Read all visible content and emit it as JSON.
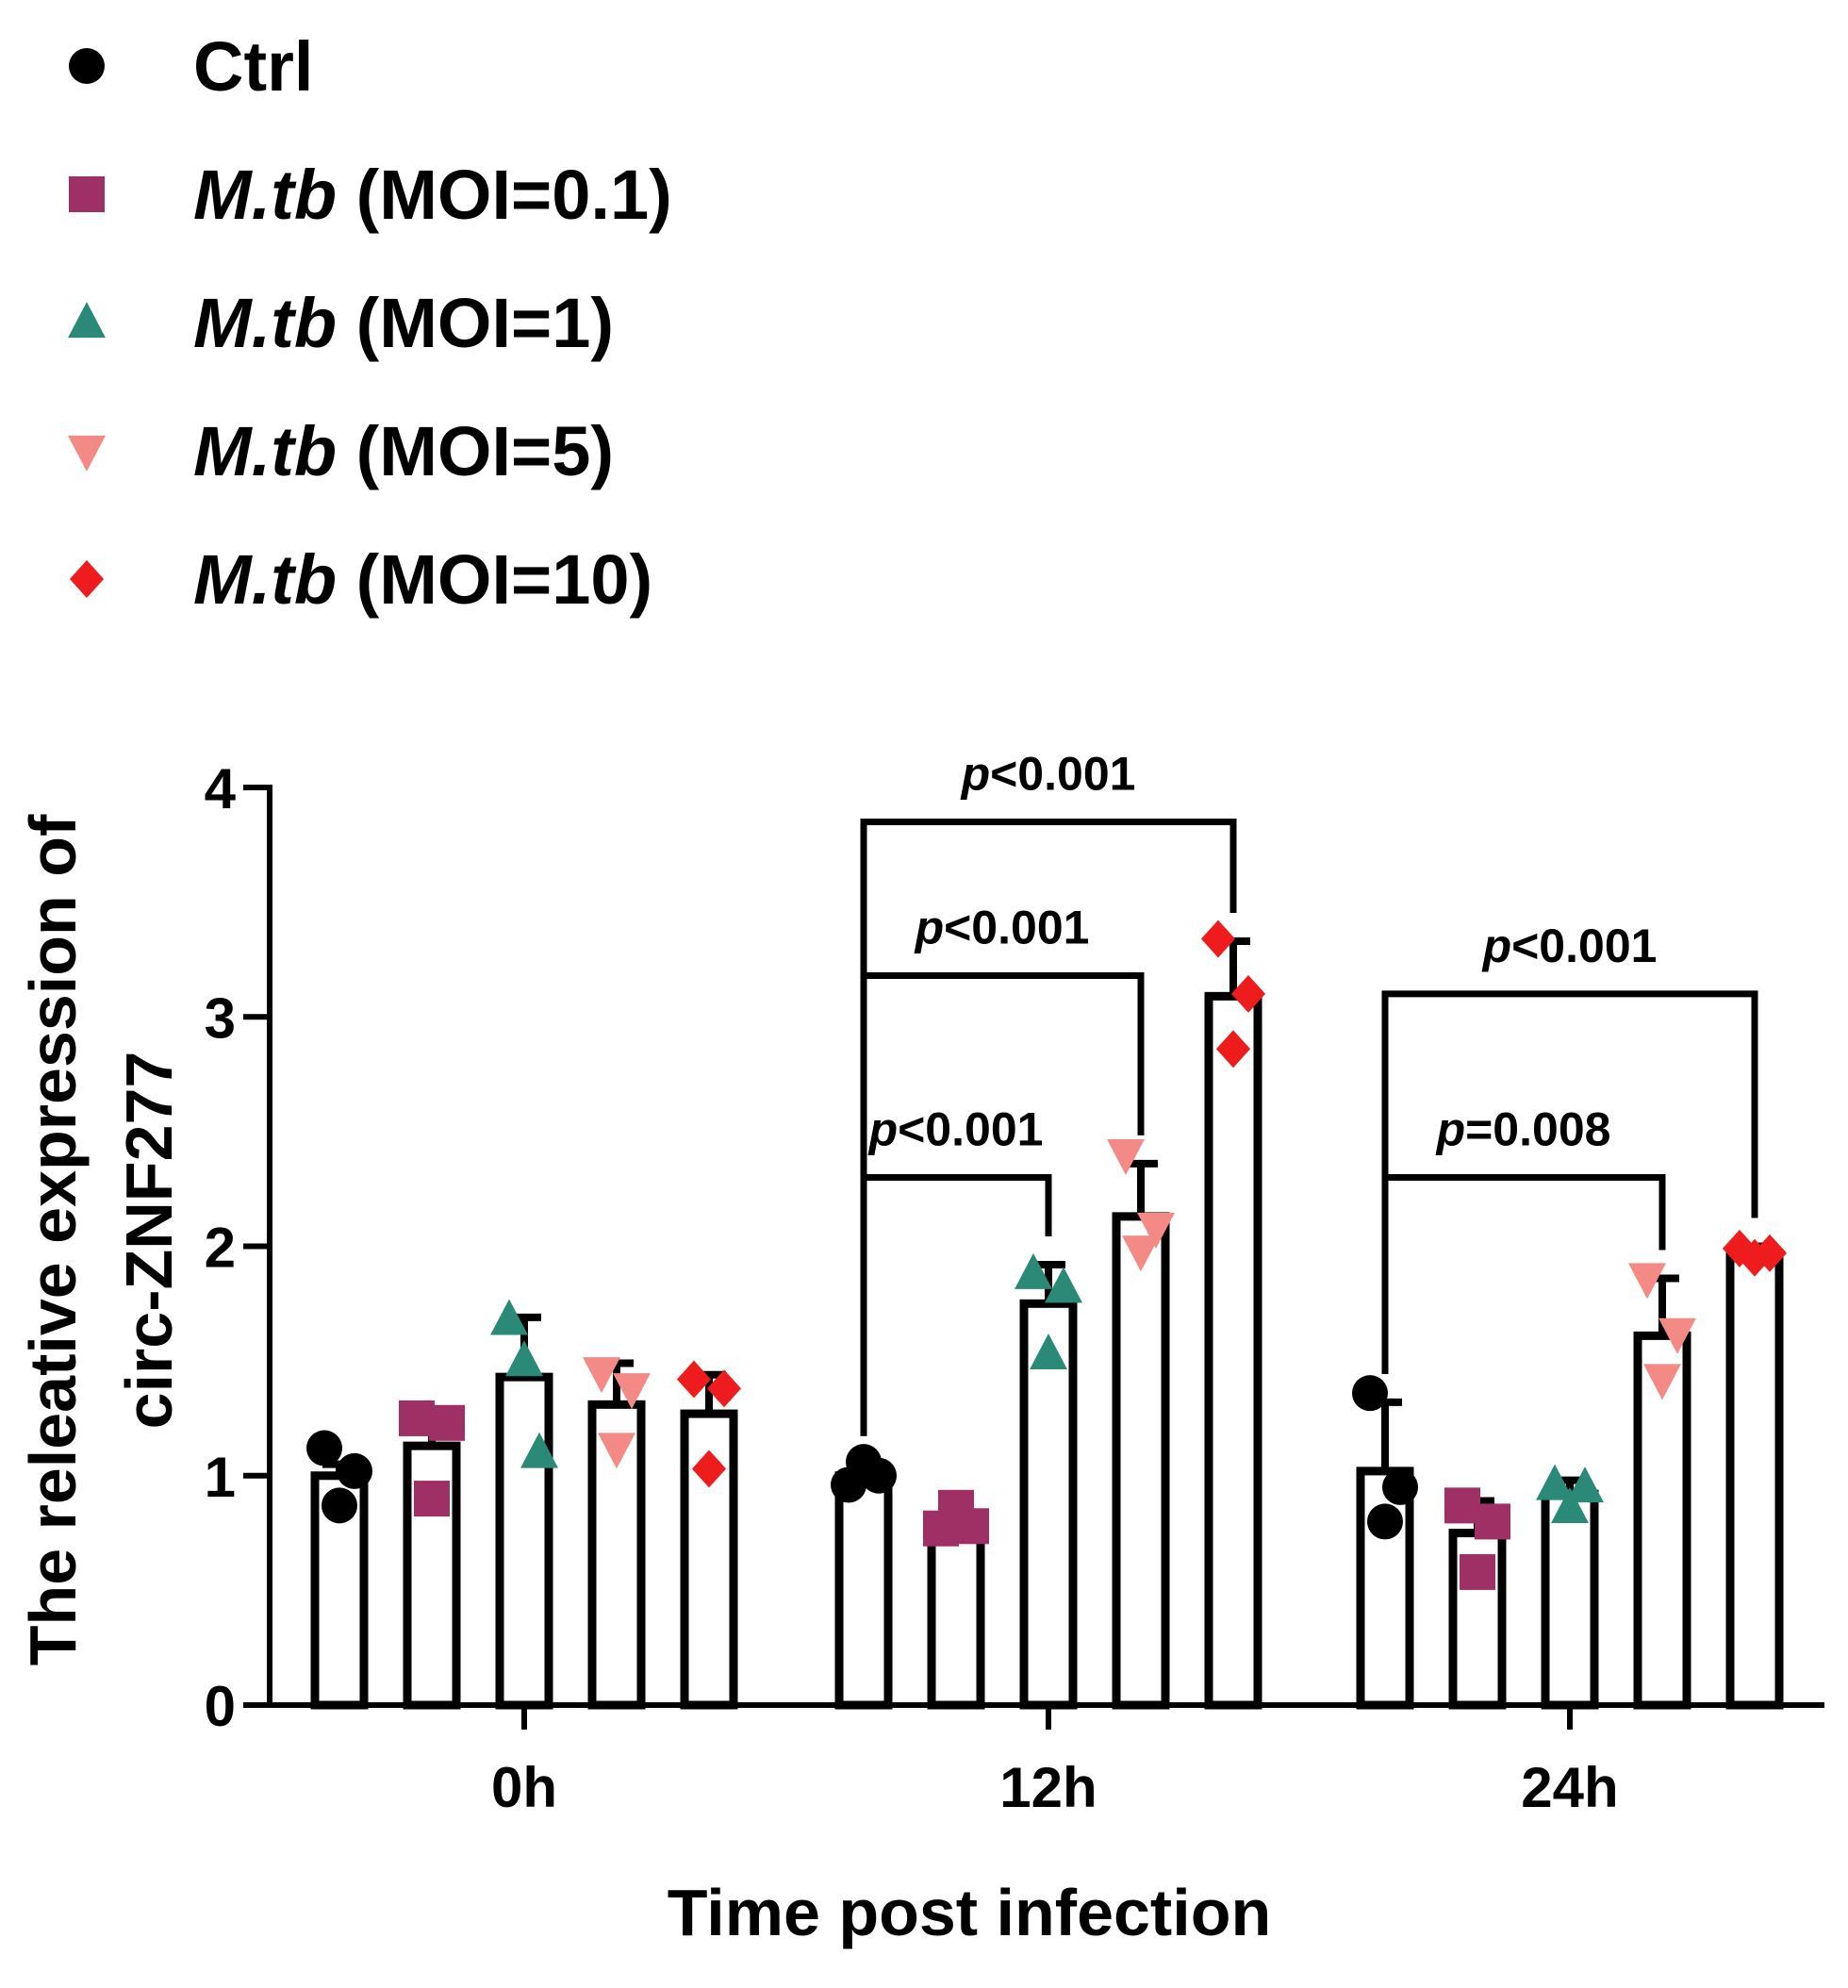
{
  "chart_data": {
    "type": "bar",
    "title": "",
    "xlabel": "Time post infection",
    "ylabel_line1": "The releative expression of",
    "ylabel_line2": "circ-ZNF277",
    "ylim": [
      0,
      4
    ],
    "yticks": [
      "0",
      "1",
      "2",
      "3",
      "4"
    ],
    "categories": [
      "0h",
      "12h",
      "24h"
    ],
    "legend": {
      "position": "top-left",
      "entries": [
        {
          "species": "",
          "label": "Ctrl"
        },
        {
          "species": "M.tb",
          "label": " (MOI=0.1)"
        },
        {
          "species": "M.tb",
          "label": " (MOI=1)"
        },
        {
          "species": "M.tb",
          "label": " (MOI=5)"
        },
        {
          "species": "M.tb",
          "label": " (MOI=10)"
        }
      ]
    },
    "series": [
      {
        "name": "Ctrl",
        "marker": "circle",
        "color": "#000000",
        "values": [
          1.0,
          1.0,
          1.02
        ],
        "errors": [
          0.05,
          0.05,
          0.3
        ],
        "points": [
          [
            1.12,
            0.87,
            1.02
          ],
          [
            0.96,
            1.06,
            1.0
          ],
          [
            1.36,
            0.8,
            0.95
          ]
        ]
      },
      {
        "name": "M.tb (MOI=0.1)",
        "marker": "square",
        "color": "#9e3065",
        "values": [
          1.13,
          0.8,
          0.75
        ],
        "errors": [
          0.12,
          0.05,
          0.14
        ],
        "points": [
          [
            1.25,
            0.9,
            1.23
          ],
          [
            0.77,
            0.86,
            0.78
          ],
          [
            0.87,
            0.58,
            0.8
          ]
        ]
      },
      {
        "name": "M.tb (MOI=1)",
        "marker": "triangle-up",
        "color": "#2a8a77",
        "values": [
          1.43,
          1.75,
          0.92
        ],
        "errors": [
          0.26,
          0.17,
          0.06
        ],
        "points": [
          [
            1.68,
            1.5,
            1.1
          ],
          [
            1.88,
            1.53,
            1.82
          ],
          [
            0.96,
            0.86,
            0.95
          ]
        ]
      },
      {
        "name": "M.tb (MOI=5)",
        "marker": "triangle-down",
        "color": "#f48a86",
        "values": [
          1.31,
          2.13,
          1.61
        ],
        "errors": [
          0.18,
          0.23,
          0.25
        ],
        "points": [
          [
            1.45,
            1.12,
            1.38
          ],
          [
            2.4,
            1.98,
            2.08
          ],
          [
            1.86,
            1.42,
            1.62
          ]
        ]
      },
      {
        "name": "M.tb (MOI=10)",
        "marker": "diamond",
        "color": "#ee1c1c",
        "values": [
          1.27,
          3.09,
          1.97
        ],
        "errors": [
          0.17,
          0.24,
          0.03
        ],
        "points": [
          [
            1.42,
            1.03,
            1.38
          ],
          [
            3.34,
            2.86,
            3.1
          ],
          [
            1.99,
            1.95,
            1.97
          ]
        ]
      }
    ],
    "annotations": [
      {
        "category": 1,
        "from_series": 0,
        "to_series": 4,
        "p_italic": "p",
        "text": "<0.001",
        "y": 3.85
      },
      {
        "category": 1,
        "from_series": 0,
        "to_series": 3,
        "p_italic": "p",
        "text": "<0.001",
        "y": 3.18
      },
      {
        "category": 1,
        "from_series": 0,
        "to_series": 2,
        "p_italic": "p",
        "text": "<0.001",
        "y": 2.3
      },
      {
        "category": 2,
        "from_series": 0,
        "to_series": 4,
        "p_italic": "p",
        "text": "<0.001",
        "y": 3.1
      },
      {
        "category": 2,
        "from_series": 0,
        "to_series": 3,
        "p_italic": "p",
        "text": "=0.008",
        "y": 2.3
      }
    ]
  }
}
